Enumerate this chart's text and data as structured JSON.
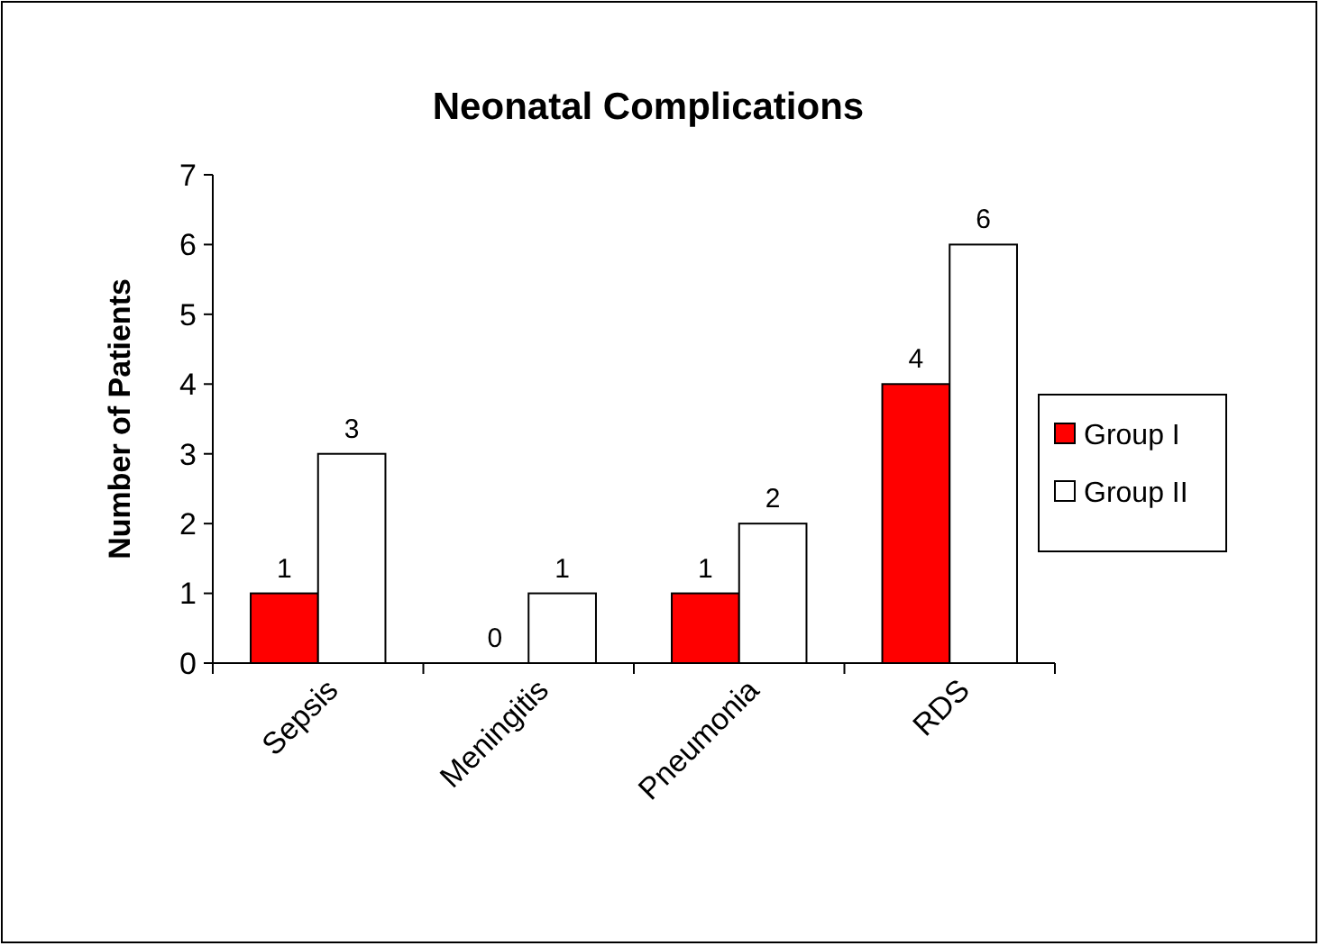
{
  "chart_data": {
    "type": "bar",
    "title": "Neonatal Complications",
    "ylabel": "Number of Patients",
    "categories": [
      "Sepsis",
      "Meningitis",
      "Pneumonia",
      "RDS"
    ],
    "series": [
      {
        "name": "Group I",
        "color": "#ff0000",
        "values": [
          1,
          0,
          1,
          4
        ]
      },
      {
        "name": "Group II",
        "color": "#ffffff",
        "values": [
          3,
          1,
          2,
          6
        ]
      }
    ],
    "ylim": [
      0,
      7
    ],
    "yticks": [
      0,
      1,
      2,
      3,
      4,
      5,
      6,
      7
    ],
    "data_labels": true,
    "legend": "right",
    "grid": false
  }
}
